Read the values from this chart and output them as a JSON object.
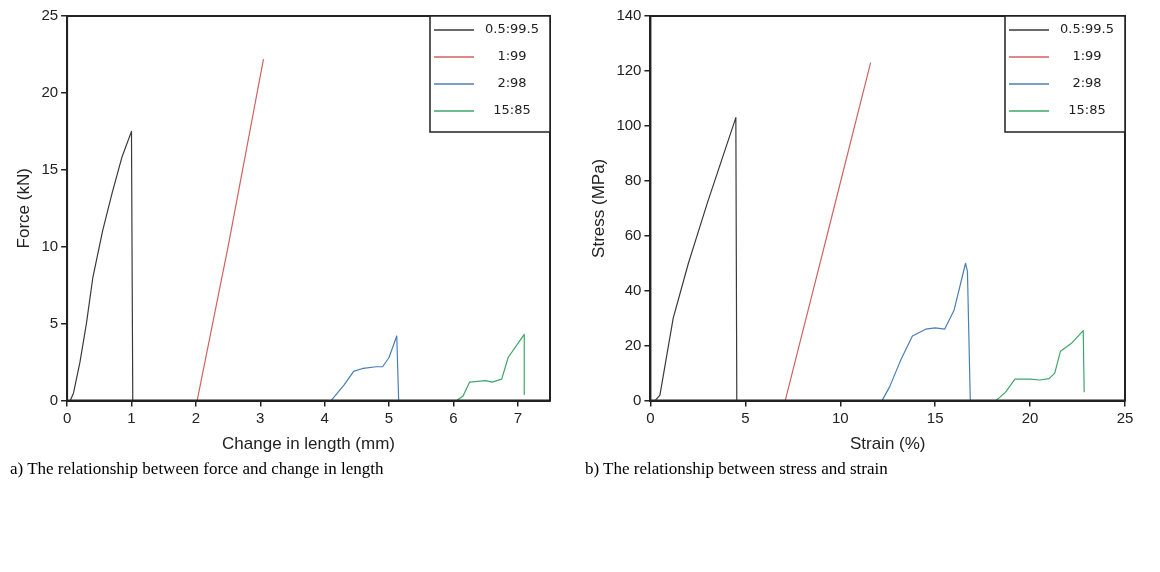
{
  "chart_data": [
    {
      "type": "line",
      "xlabel": "Change in length (mm)",
      "ylabel": "Force (kN)",
      "xlim": [
        0,
        7.5
      ],
      "xticks": [
        0,
        1,
        2,
        3,
        4,
        5,
        6,
        7
      ],
      "ylim": [
        0,
        25
      ],
      "yticks": [
        0,
        5,
        10,
        15,
        20,
        25
      ],
      "grid": false,
      "legend": "top right",
      "marker": "none",
      "series": [
        {
          "name": "0.5:99.5",
          "color": "#3a3a3a",
          "x": [
            0.05,
            0.1,
            0.2,
            0.3,
            0.4,
            0.55,
            0.7,
            0.85,
            1.0,
            1.02
          ],
          "values": [
            0,
            0.5,
            2.5,
            5,
            8,
            11,
            13.5,
            15.8,
            17.5,
            0
          ]
        },
        {
          "name": "1:99",
          "color": "#d0635f",
          "x": [
            2.02,
            2.5,
            3.05
          ],
          "values": [
            0,
            10,
            22.2
          ]
        },
        {
          "name": "2:98",
          "color": "#4a7fb5",
          "x": [
            4.1,
            4.3,
            4.45,
            4.6,
            4.8,
            4.9,
            5.0,
            5.12,
            5.15
          ],
          "values": [
            0,
            1,
            1.9,
            2.1,
            2.2,
            2.2,
            2.8,
            4.2,
            0
          ]
        },
        {
          "name": "15:85",
          "color": "#3fa66a",
          "x": [
            6.05,
            6.15,
            6.25,
            6.5,
            6.6,
            6.75,
            6.85,
            7.0,
            7.1,
            7.1
          ],
          "values": [
            0,
            0.3,
            1.2,
            1.3,
            1.2,
            1.4,
            2.8,
            3.7,
            4.3,
            0.4
          ]
        }
      ],
      "annotations": [
        "a) The relationship between force and change in length"
      ]
    },
    {
      "type": "line",
      "xlabel": "Strain (%)",
      "ylabel": "Stress (MPa)",
      "xlim": [
        0,
        25
      ],
      "xticks": [
        0,
        5,
        10,
        15,
        20,
        25
      ],
      "ylim": [
        0,
        140
      ],
      "yticks": [
        0,
        20,
        40,
        60,
        80,
        100,
        120,
        140
      ],
      "grid": false,
      "legend": "top right",
      "marker": "none",
      "series": [
        {
          "name": "0.5:99.5",
          "color": "#3a3a3a",
          "x": [
            0.25,
            0.5,
            0.7,
            1.2,
            2,
            3,
            4.5,
            4.55
          ],
          "values": [
            0,
            2,
            10,
            30,
            50,
            72,
            103,
            0
          ]
        },
        {
          "name": "1:99",
          "color": "#d0635f",
          "x": [
            7.1,
            9.3,
            11.6
          ],
          "values": [
            0,
            60,
            123
          ]
        },
        {
          "name": "2:98",
          "color": "#4a7fb5",
          "x": [
            12.2,
            12.6,
            13.2,
            13.8,
            14.5,
            15,
            15.5,
            16,
            16.6,
            16.7,
            16.85
          ],
          "values": [
            0,
            5,
            15,
            23.5,
            26,
            26.5,
            26,
            33,
            50,
            47,
            0
          ]
        },
        {
          "name": "15:85",
          "color": "#3fa66a",
          "x": [
            18.2,
            18.7,
            19.2,
            20,
            20.5,
            21,
            21.3,
            21.6,
            22.2,
            22.8,
            22.85
          ],
          "values": [
            0,
            3,
            7.8,
            7.8,
            7.5,
            8,
            10,
            18,
            21,
            25.5,
            3
          ]
        }
      ],
      "annotations": [
        "b) The relationship between stress and strain"
      ]
    }
  ]
}
